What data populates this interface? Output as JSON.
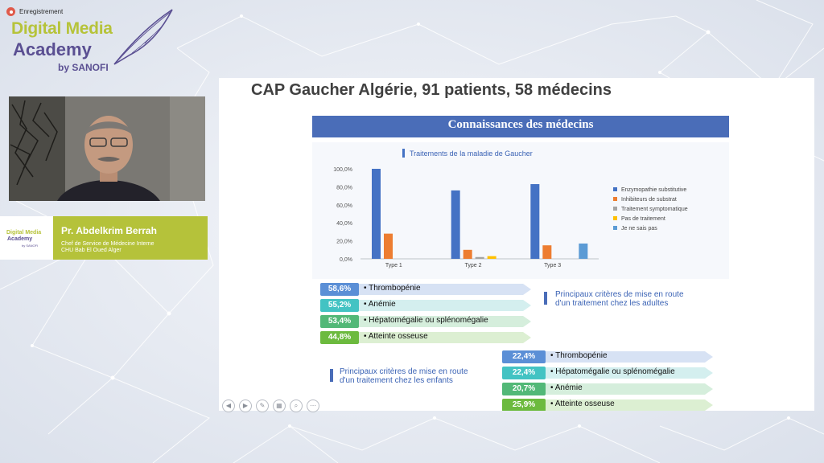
{
  "recording": {
    "label": "Enregistrement"
  },
  "logo": {
    "line1": "Digital Media",
    "line2": "Academy",
    "line3": "by SANOFI"
  },
  "speaker": {
    "name": "Pr. Abdelkrim Berrah",
    "role": "Chef de Service de Médecine Interne",
    "place": "CHU Bab El Oued Alger"
  },
  "slide": {
    "title": "CAP Gaucher Algérie, 91 patients, 58 médecins",
    "banner": "Connaissances des médecins"
  },
  "chart_data": {
    "type": "bar",
    "title": "Traitements de la maladie de Gaucher",
    "categories": [
      "Type 1",
      "Type 2",
      "Type 3"
    ],
    "yticks": [
      "100,0%",
      "80,0%",
      "60,0%",
      "40,0%",
      "20,0%",
      "0,0%"
    ],
    "ylim": [
      0,
      100
    ],
    "legend_position": "right",
    "series": [
      {
        "name": "Enzymopathie substitutive",
        "color": "#4472c4",
        "values": [
          100,
          76,
          83
        ]
      },
      {
        "name": "Inhibiteurs de substrat",
        "color": "#ed7d31",
        "values": [
          28,
          10,
          15
        ]
      },
      {
        "name": "Traitement symptomatique",
        "color": "#a5a5a5",
        "values": [
          0,
          2,
          0
        ]
      },
      {
        "name": "Pas de traitement",
        "color": "#ffc000",
        "values": [
          0,
          3,
          0
        ]
      },
      {
        "name": "Je ne sais pas",
        "color": "#5b9bd5",
        "values": [
          0,
          0,
          17
        ]
      }
    ]
  },
  "adults": {
    "note_line1": "Principaux critères de mise en route",
    "note_line2": "d'un traitement chez les adultes",
    "items": [
      {
        "pct": "58,6%",
        "label": "Thrombopénie",
        "color": "#5b8fd6",
        "arrow": "#d7e2f4"
      },
      {
        "pct": "55,2%",
        "label": "Anémie",
        "color": "#43c3c3",
        "arrow": "#d4efef"
      },
      {
        "pct": "53,4%",
        "label": "Hépatomégalie ou splénomégalie",
        "color": "#52b877",
        "arrow": "#d5eedc"
      },
      {
        "pct": "44,8%",
        "label": "Atteinte osseuse",
        "color": "#6cba3e",
        "arrow": "#dcefd2"
      }
    ]
  },
  "children": {
    "note_line1": "Principaux critères de mise en route",
    "note_line2": "d'un traitement chez les enfants",
    "items": [
      {
        "pct": "22,4%",
        "label": "Thrombopénie",
        "color": "#5b8fd6",
        "arrow": "#d7e2f4"
      },
      {
        "pct": "22,4%",
        "label": "Hépatomégalie ou splénomégalie",
        "color": "#43c3c3",
        "arrow": "#d4efef"
      },
      {
        "pct": "20,7%",
        "label": "Anémie",
        "color": "#52b877",
        "arrow": "#d5eedc"
      },
      {
        "pct": "25,9%",
        "label": "Atteinte osseuse",
        "color": "#6cba3e",
        "arrow": "#dcefd2"
      }
    ]
  },
  "controls": [
    {
      "icon": "prev-slide-icon",
      "glyph": "◀"
    },
    {
      "icon": "next-slide-icon",
      "glyph": "▶"
    },
    {
      "icon": "pen-icon",
      "glyph": "✎"
    },
    {
      "icon": "slides-grid-icon",
      "glyph": "▦"
    },
    {
      "icon": "zoom-icon",
      "glyph": "⌕"
    },
    {
      "icon": "more-icon",
      "glyph": "⋯"
    }
  ]
}
